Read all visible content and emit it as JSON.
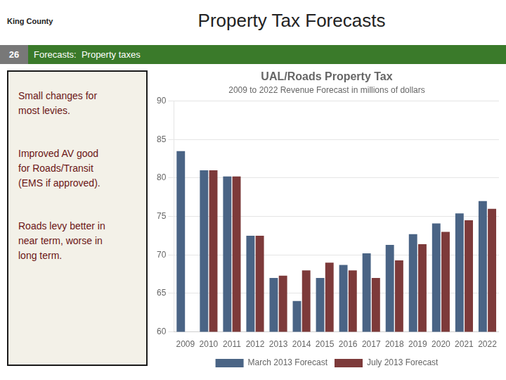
{
  "chart_data": {
    "type": "bar",
    "title": "UAL/Roads Property Tax",
    "subtitle": "2009 to 2022 Revenue Forecast in millions of dollars",
    "annotations": [
      "Property Tax Forecasts",
      "King County",
      "26",
      "Forecasts:  Property taxes",
      "Small changes for\nmost levies.",
      "Improved AV good\nfor Roads/Transit\n(EMS if approved).",
      "Roads levy better in\nnear term, worse in\nlong term."
    ],
    "categories": [
      2009,
      2010,
      2011,
      2012,
      2013,
      2014,
      2015,
      2016,
      2017,
      2018,
      2019,
      2020,
      2021,
      2022
    ],
    "series": [
      {
        "name": "March 2013 Forecast",
        "color": "#4a6485",
        "values": [
          83.5,
          81.0,
          80.2,
          72.5,
          67.0,
          64.0,
          67.0,
          68.7,
          70.2,
          71.3,
          72.7,
          74.1,
          75.4,
          77.0
        ]
      },
      {
        "name": "July 2013 Forecast",
        "color": "#7d3a3a",
        "values": [
          null,
          81.0,
          80.2,
          72.5,
          67.3,
          68.0,
          69.0,
          68.0,
          67.0,
          69.3,
          71.4,
          73.0,
          74.5,
          76.0
        ]
      }
    ],
    "ylim": [
      60,
      90
    ],
    "yticks": [
      60,
      65,
      70,
      75,
      80,
      85,
      90
    ],
    "grid": true,
    "legend": "bottom"
  }
}
